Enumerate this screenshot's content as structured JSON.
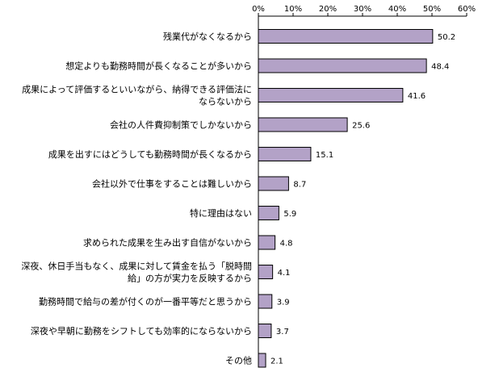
{
  "chart_data": {
    "type": "bar",
    "orientation": "horizontal",
    "categories": [
      "残業代がなくなるから",
      "想定よりも勤務時間が長くなることが多いから",
      "成果によって評価するといいながら、納得できる評価法にならないから",
      "会社の人件費抑制策でしかないから",
      "成果を出すにはどうしても勤務時間が長くなるから",
      "会社以外で仕事をすることは難しいから",
      "特に理由はない",
      "求められた成果を生み出す自信がないから",
      "深夜、休日手当もなく、成果に対して賃金を払う「脱時間給」の方が実力を反映するから",
      "勤務時間で給与の差が付くのが一番平等だと思うから",
      "深夜や早朝に勤務をシフトしても効率的にならないから",
      "その他"
    ],
    "category_lines": [
      [
        "残業代がなくなるから"
      ],
      [
        "想定よりも勤務時間が長くなることが多いから"
      ],
      [
        "成果によって評価するといいながら、納得できる評価法に",
        "ならないから"
      ],
      [
        "会社の人件費抑制策でしかないから"
      ],
      [
        "成果を出すにはどうしても勤務時間が長くなるから"
      ],
      [
        "会社以外で仕事をすることは難しいから"
      ],
      [
        "特に理由はない"
      ],
      [
        "求められた成果を生み出す自信がないから"
      ],
      [
        "深夜、休日手当もなく、成果に対して賃金を払う「脱時間",
        "給」の方が実力を反映するから"
      ],
      [
        "勤務時間で給与の差が付くのが一番平等だと思うから"
      ],
      [
        "深夜や早朝に勤務をシフトしても効率的にならないから"
      ],
      [
        "その他"
      ]
    ],
    "values": [
      50.2,
      48.4,
      41.6,
      25.6,
      15.1,
      8.7,
      5.9,
      4.8,
      4.1,
      3.9,
      3.7,
      2.1
    ],
    "value_labels": [
      "50.2",
      "48.4",
      "41.6",
      "25.6",
      "15.1",
      "8.7",
      "5.9",
      "4.8",
      "4.1",
      "3.9",
      "3.7",
      "2.1"
    ],
    "ticks": [
      0,
      10,
      20,
      30,
      40,
      50,
      60
    ],
    "tick_labels": [
      "0%",
      "10%",
      "20%",
      "30%",
      "40%",
      "50%",
      "60%"
    ],
    "xlim": [
      0,
      60
    ],
    "axis_position": "top",
    "grid": false,
    "legend": "none",
    "colors": {
      "bar_fill": "#b3a2c7",
      "bar_stroke": "#000000",
      "axis": "#000000",
      "text": "#000000"
    }
  }
}
